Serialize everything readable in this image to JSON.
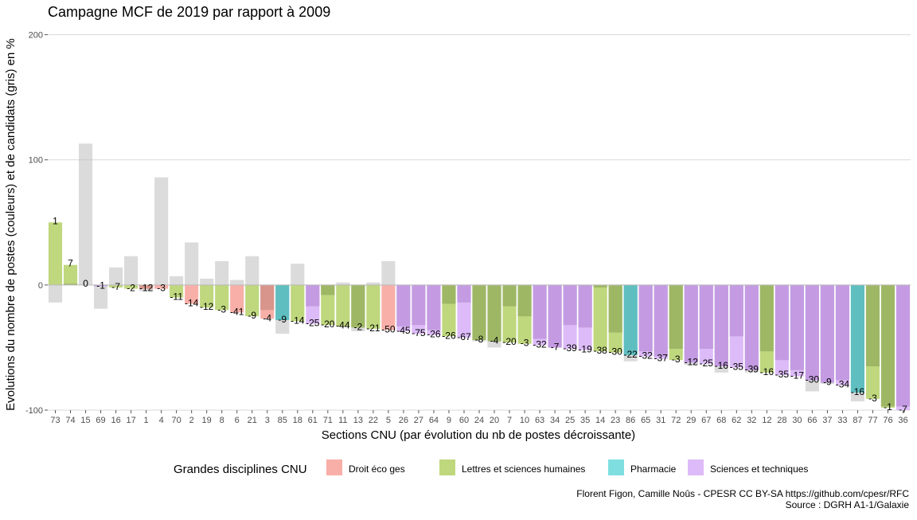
{
  "chart_data": {
    "type": "bar",
    "title": "Campagne MCF de 2019 par rapport à 2009",
    "xlabel": "Sections CNU (par évolution du nb de postes décroissante)",
    "ylabel": "Evolutions du nombre de postes (couleurs) et de candidats (gris) en %",
    "ylim": [
      -100,
      215
    ],
    "yticks": [
      -100,
      0,
      100,
      200
    ],
    "grid": true,
    "legend": {
      "title": "Grandes disciplines CNU",
      "position": "bottom",
      "items": [
        {
          "key": "D",
          "label": "Droit éco ges",
          "color": "#F8AFA8"
        },
        {
          "key": "L",
          "label": "Lettres et sciences humaines",
          "color": "#BFD77D"
        },
        {
          "key": "P",
          "label": "Pharmacie",
          "color": "#7FDFE0"
        },
        {
          "key": "S",
          "label": "Sciences et techniques",
          "color": "#DDBBF8"
        }
      ]
    },
    "colors": {
      "candidates": "#BEBEBE",
      "overlap": {
        "D": "#D8958B",
        "L": "#9EB765",
        "P": "#5FBEC0",
        "S": "#C49BE2"
      }
    },
    "categories": [
      "73",
      "74",
      "15",
      "69",
      "16",
      "17",
      "1",
      "4",
      "70",
      "2",
      "19",
      "8",
      "6",
      "21",
      "3",
      "85",
      "18",
      "61",
      "71",
      "11",
      "13",
      "22",
      "5",
      "26",
      "27",
      "64",
      "9",
      "60",
      "24",
      "20",
      "7",
      "10",
      "63",
      "34",
      "25",
      "35",
      "14",
      "23",
      "86",
      "65",
      "31",
      "72",
      "29",
      "67",
      "68",
      "62",
      "32",
      "12",
      "28",
      "30",
      "66",
      "37",
      "33",
      "87",
      "77",
      "76",
      "36"
    ],
    "group": [
      "L",
      "L",
      "L",
      "S",
      "L",
      "L",
      "D",
      "D",
      "L",
      "D",
      "L",
      "L",
      "D",
      "L",
      "D",
      "P",
      "L",
      "S",
      "L",
      "L",
      "L",
      "L",
      "D",
      "S",
      "S",
      "S",
      "L",
      "S",
      "L",
      "L",
      "L",
      "L",
      "S",
      "S",
      "S",
      "S",
      "L",
      "L",
      "P",
      "S",
      "S",
      "L",
      "S",
      "S",
      "S",
      "S",
      "S",
      "L",
      "S",
      "S",
      "S",
      "S",
      "S",
      "P",
      "L",
      "L",
      "S"
    ],
    "series": [
      {
        "name": "postes",
        "values": [
          50,
          16,
          0,
          -1,
          -2,
          -3,
          -3,
          -3,
          -10,
          -15,
          -18,
          -20,
          -22,
          -25,
          -27,
          -28,
          -29,
          -31,
          -32,
          -33,
          -34,
          -35,
          -36,
          -37,
          -39,
          -40,
          -41,
          -42,
          -44,
          -45,
          -46,
          -47,
          -48,
          -50,
          -51,
          -52,
          -53,
          -54,
          -56,
          -57,
          -59,
          -60,
          -62,
          -63,
          -65,
          -66,
          -68,
          -70,
          -72,
          -73,
          -76,
          -78,
          -80,
          -86,
          -91,
          -98,
          -100
        ]
      },
      {
        "name": "candidats",
        "values": [
          -14,
          1,
          113,
          -19,
          14,
          23,
          -5,
          86,
          7,
          34,
          5,
          19,
          4,
          23,
          -20,
          -39,
          17,
          -17,
          -8,
          2,
          -37,
          2,
          19,
          -33,
          -32,
          -36,
          -15,
          -14,
          -45,
          -50,
          -17,
          -25,
          -43,
          -50,
          -32,
          -34,
          -2,
          -38,
          -61,
          -53,
          -57,
          -51,
          -64,
          -51,
          -70,
          -41,
          -70,
          -53,
          -60,
          -68,
          -85,
          -79,
          -76,
          -93,
          -65,
          -97,
          -97
        ]
      }
    ],
    "bar_labels": [
      "1",
      "7",
      "0",
      "-1",
      "-7",
      "-2",
      "-12",
      "-3",
      "-11",
      "-14",
      "-12",
      "-3",
      "-41",
      "-9",
      "-4",
      "-9",
      "-14",
      "-25",
      "-20",
      "-44",
      "-2",
      "-21",
      "-50",
      "-45",
      "-75",
      "-26",
      "-26",
      "-67",
      "-8",
      "-4",
      "-20",
      "-3",
      "-32",
      "-7",
      "-39",
      "-19",
      "-38",
      "-30",
      "-22",
      "-32",
      "-37",
      "-3",
      "-12",
      "-25",
      "-16",
      "-35",
      "-39",
      "-16",
      "-35",
      "-17",
      "-30",
      "-9",
      "-34",
      "-16",
      "-3",
      "-1",
      "-7"
    ]
  },
  "caption": {
    "line1": "Florent Figon, Camille Noûs - CPESR CC BY-SA https://github.com/cpesr/RFC",
    "line2": "Source : DGRH A1-1/Galaxie"
  }
}
